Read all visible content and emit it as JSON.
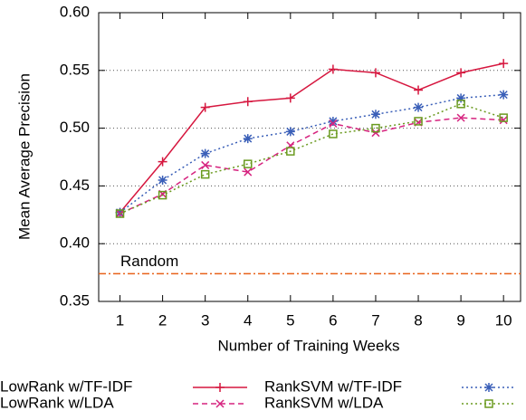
{
  "chart_data": {
    "type": "line",
    "xlabel": "Number of Training Weeks",
    "ylabel": "Mean Average Precision",
    "x": [
      1,
      2,
      3,
      4,
      5,
      6,
      7,
      8,
      9,
      10
    ],
    "xlim": [
      0.5,
      10.4
    ],
    "xticks": [
      1,
      2,
      3,
      4,
      5,
      6,
      7,
      8,
      9,
      10
    ],
    "ylim": [
      0.35,
      0.6
    ],
    "yticks": [
      {
        "value": 0.35,
        "label": "0.35"
      },
      {
        "value": 0.4,
        "label": "0.40"
      },
      {
        "value": 0.45,
        "label": "0.45"
      },
      {
        "value": 0.5,
        "label": "0.50"
      },
      {
        "value": 0.55,
        "label": "0.55"
      },
      {
        "value": 0.6,
        "label": "0.60"
      }
    ],
    "grid": true,
    "series": [
      {
        "name": "LowRank w/TF-IDF",
        "color": "#d6173f",
        "marker": "plus",
        "dash": "solid",
        "values": [
          0.427,
          0.471,
          0.518,
          0.523,
          0.526,
          0.551,
          0.548,
          0.533,
          0.548,
          0.556
        ]
      },
      {
        "name": "RankSVM w/TF-IDF",
        "color": "#3a5fb8",
        "marker": "star",
        "dash": "dotted",
        "values": [
          0.427,
          0.455,
          0.478,
          0.491,
          0.497,
          0.506,
          0.512,
          0.518,
          0.526,
          0.529
        ]
      },
      {
        "name": "LowRank w/LDA",
        "color": "#d6237f",
        "marker": "cross",
        "dash": "dashed",
        "values": [
          0.426,
          0.443,
          0.468,
          0.462,
          0.485,
          0.504,
          0.496,
          0.505,
          0.509,
          0.507
        ]
      },
      {
        "name": "RankSVM w/LDA",
        "color": "#6a9a1f",
        "marker": "square",
        "dash": "dotted",
        "values": [
          0.426,
          0.442,
          0.46,
          0.469,
          0.48,
          0.495,
          0.5,
          0.506,
          0.521,
          0.509
        ]
      }
    ],
    "reference": {
      "label": "Random",
      "value": 0.374,
      "color": "#e8621a"
    }
  }
}
